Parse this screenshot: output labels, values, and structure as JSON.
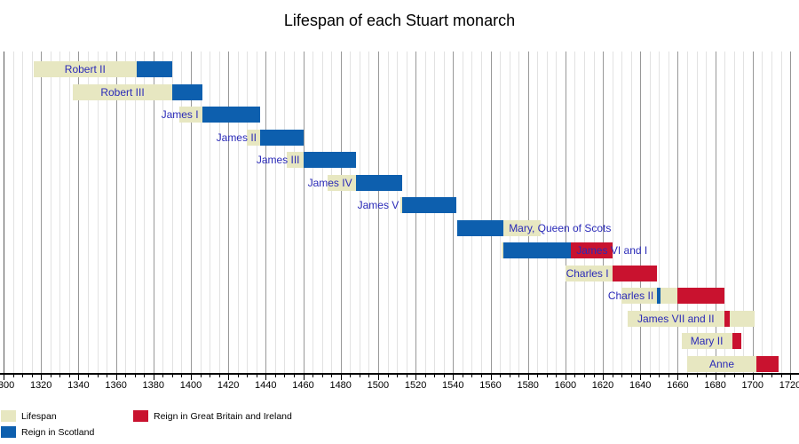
{
  "title": "Lifespan of each Stuart monarch",
  "colors": {
    "lifespan": "#e7e7c1",
    "scotland": "#0d5fae",
    "great_britain_ireland": "#c9122f",
    "label_text": "#2a2ab8",
    "grid_minor": "#e2e2e2",
    "grid_major": "#989898",
    "grid_edge": "#595959",
    "axis": "#000000"
  },
  "axis": {
    "start": 1300,
    "end": 1720,
    "minor_step": 5,
    "major_step": 20,
    "tick_labels": [
      "1300",
      "1320",
      "1340",
      "1360",
      "1380",
      "1400",
      "1420",
      "1440",
      "1460",
      "1480",
      "1500",
      "1520",
      "1540",
      "1560",
      "1580",
      "1600",
      "1620",
      "1640",
      "1660",
      "1680",
      "1700",
      "1720"
    ]
  },
  "legend": [
    {
      "label": "Lifespan",
      "color_key": "lifespan"
    },
    {
      "label": "Reign in Scotland",
      "color_key": "scotland"
    },
    {
      "label": "Reign in Great Britain and Ireland",
      "color_key": "great_britain_ireland"
    }
  ],
  "chart_data": {
    "type": "bar",
    "subtype": "timeline-gantt",
    "title": "Lifespan of each Stuart monarch",
    "x_range": [
      1300,
      1720
    ],
    "gridline_step_years": 5,
    "tick_label_step_years": 20,
    "legend_position": "bottom-left",
    "rows": [
      {
        "name": "Robert II",
        "lifespan": [
          1316,
          1390
        ],
        "reign_scotland": [
          1371,
          1390
        ],
        "reign_great_britain_ireland": null,
        "label": {
          "align": "center",
          "from": 1316,
          "to": 1371
        }
      },
      {
        "name": "Robert III",
        "lifespan": [
          1337,
          1406
        ],
        "reign_scotland": [
          1390,
          1406
        ],
        "reign_great_britain_ireland": null,
        "label": {
          "align": "center",
          "from": 1337,
          "to": 1390
        }
      },
      {
        "name": "James I",
        "lifespan": [
          1394,
          1437
        ],
        "reign_scotland": [
          1406,
          1437
        ],
        "reign_great_britain_ireland": null,
        "label": {
          "align": "right",
          "anchor": 1406
        }
      },
      {
        "name": "James II",
        "lifespan": [
          1430,
          1460
        ],
        "reign_scotland": [
          1437,
          1460
        ],
        "reign_great_britain_ireland": null,
        "label": {
          "align": "right",
          "anchor": 1437
        }
      },
      {
        "name": "James III",
        "lifespan": [
          1451,
          1488
        ],
        "reign_scotland": [
          1460,
          1488
        ],
        "reign_great_britain_ireland": null,
        "label": {
          "align": "right",
          "anchor": 1460
        }
      },
      {
        "name": "James IV",
        "lifespan": [
          1473,
          1513
        ],
        "reign_scotland": [
          1488,
          1513
        ],
        "reign_great_britain_ireland": null,
        "label": {
          "align": "right",
          "anchor": 1488
        }
      },
      {
        "name": "James V",
        "lifespan": [
          1512,
          1542
        ],
        "reign_scotland": [
          1513,
          1542
        ],
        "reign_great_britain_ireland": null,
        "label": {
          "align": "right",
          "anchor": 1513
        }
      },
      {
        "name": "Mary, Queen of Scots",
        "lifespan": [
          1542,
          1587
        ],
        "reign_scotland": [
          1542,
          1567
        ],
        "reign_great_britain_ireland": null,
        "label": {
          "align": "left",
          "anchor": 1567
        }
      },
      {
        "name": "James VI and I",
        "lifespan": [
          1566,
          1625
        ],
        "reign_scotland": [
          1567,
          1625
        ],
        "reign_great_britain_ireland": [
          1603,
          1625
        ],
        "label": {
          "align": "left",
          "anchor": 1603
        }
      },
      {
        "name": "Charles I",
        "lifespan": [
          1600,
          1649
        ],
        "reign_scotland": null,
        "reign_great_britain_ireland": [
          1625,
          1649
        ],
        "label": {
          "align": "right",
          "anchor": 1625
        }
      },
      {
        "name": "Charles II",
        "lifespan": [
          1630,
          1685
        ],
        "reign_scotland": [
          1649,
          1651
        ],
        "reign_great_britain_ireland": [
          1660,
          1685
        ],
        "label": {
          "align": "right",
          "anchor": 1649
        }
      },
      {
        "name": "James VII and II",
        "lifespan": [
          1633,
          1701
        ],
        "reign_scotland": null,
        "reign_great_britain_ireland": [
          1685,
          1688
        ],
        "label": {
          "align": "center",
          "from": 1633,
          "to": 1685
        }
      },
      {
        "name": "Mary II",
        "lifespan": [
          1662,
          1694
        ],
        "reign_scotland": null,
        "reign_great_britain_ireland": [
          1689,
          1694
        ],
        "label": {
          "align": "center",
          "from": 1662,
          "to": 1689
        }
      },
      {
        "name": "Anne",
        "lifespan": [
          1665,
          1714
        ],
        "reign_scotland": null,
        "reign_great_britain_ireland": [
          1702,
          1714
        ],
        "label": {
          "align": "center",
          "from": 1665,
          "to": 1702
        }
      }
    ]
  }
}
